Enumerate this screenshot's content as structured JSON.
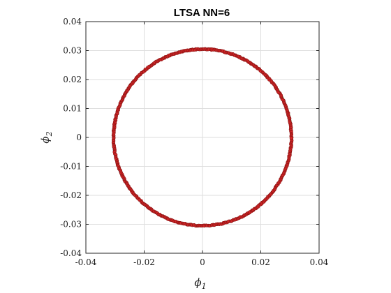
{
  "chart_data": {
    "type": "scatter",
    "title": "LTSA NN=6",
    "xlabel": {
      "symbol": "ϕ",
      "subscript": "1"
    },
    "ylabel": {
      "symbol": "ϕ",
      "subscript": "2"
    },
    "xlim": [
      -0.04,
      0.04
    ],
    "ylim": [
      -0.04,
      0.04
    ],
    "xticks": [
      -0.04,
      -0.02,
      0,
      0.02,
      0.04
    ],
    "yticks": [
      -0.04,
      -0.03,
      -0.02,
      -0.01,
      0,
      0.01,
      0.02,
      0.03,
      0.04
    ],
    "xtick_labels": [
      "-0.04",
      "-0.02",
      "0",
      "0.02",
      "0.04"
    ],
    "ytick_labels": [
      "-0.04",
      "-0.03",
      "-0.02",
      "-0.01",
      "0",
      "0.01",
      "0.02",
      "0.03",
      "0.04"
    ],
    "grid": true,
    "aspect": "equal",
    "series": [
      {
        "kind": "ring",
        "center": [
          0,
          0
        ],
        "radius": 0.0305,
        "marker": "circle",
        "marker_face": "#d62728",
        "marker_edge": "#8c1414",
        "underlay_colors": [
          "#1f77b4",
          "#e8c200",
          "#2ca02c"
        ],
        "point_count": 600
      }
    ]
  },
  "colors": {
    "axis": "#262626",
    "grid": "#dedede",
    "background": "#ffffff"
  }
}
